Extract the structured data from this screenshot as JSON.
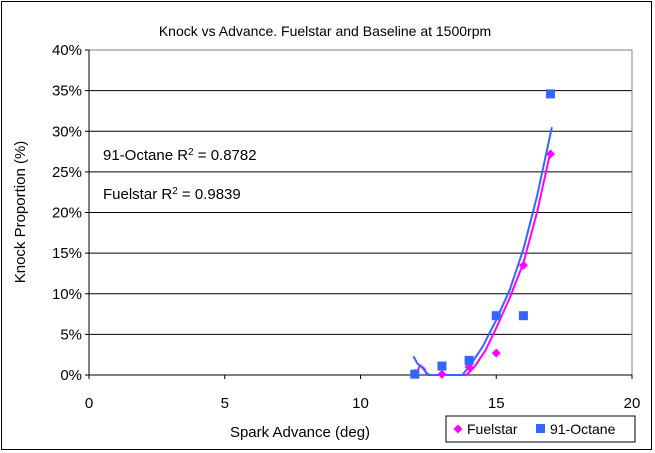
{
  "chart_data": {
    "type": "scatter",
    "title": "Knock vs Advance. Fuelstar and Baseline at 1500rpm",
    "xlabel": "Spark Advance (deg)",
    "ylabel": "Knock Proportion (%)",
    "xlim": [
      0,
      20
    ],
    "ylim": [
      0,
      40
    ],
    "x_ticks": [
      "0",
      "5",
      "10",
      "15",
      "20"
    ],
    "y_ticks": [
      "0%",
      "5%",
      "10%",
      "15%",
      "20%",
      "25%",
      "30%",
      "35%",
      "40%"
    ],
    "grid": "horizontal",
    "legend_position": "bottom-right",
    "series": [
      {
        "name": "Fuelstar",
        "marker": "diamond",
        "color": "#ff00ff",
        "x": [
          12,
          13,
          14,
          15,
          16,
          17
        ],
        "y": [
          0.2,
          0.1,
          1.0,
          2.7,
          13.5,
          27.2
        ],
        "trend_x": [
          12.05,
          12.2,
          12.35,
          12.45,
          13.9,
          14.2,
          14.6,
          15.0,
          15.5,
          16.0,
          16.5,
          17.0
        ],
        "trend_y": [
          0.2,
          1.2,
          0.8,
          0.0,
          0.0,
          1.0,
          3.0,
          5.8,
          9.5,
          13.8,
          20.0,
          27.5
        ]
      },
      {
        "name": "91-Octane",
        "marker": "square",
        "color": "#3366ff",
        "x": [
          12,
          13,
          14,
          15,
          16,
          17
        ],
        "y": [
          0.1,
          1.1,
          1.8,
          7.3,
          7.3,
          34.6
        ],
        "trend_x": [
          11.95,
          12.1,
          12.25,
          12.45,
          12.55,
          13.75,
          14.0,
          14.5,
          15.0,
          15.5,
          16.0,
          16.5,
          17.05
        ],
        "trend_y": [
          2.3,
          1.4,
          1.0,
          0.2,
          0.0,
          0.0,
          1.0,
          3.5,
          6.8,
          10.5,
          15.5,
          22.0,
          30.5
        ]
      }
    ],
    "annotations": [
      {
        "base": "91-Octane R",
        "sup": "2",
        "rest": " = 0.8782"
      },
      {
        "base": "Fuelstar R",
        "sup": "2",
        "rest": " = 0.9839"
      }
    ]
  }
}
